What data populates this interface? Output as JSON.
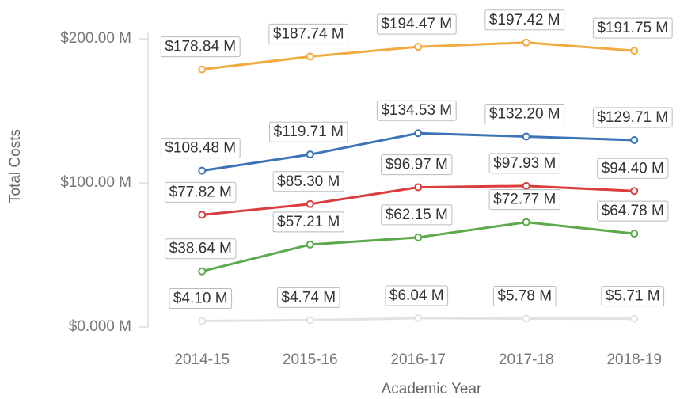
{
  "chart_data": {
    "type": "line",
    "x_label": "Academic Year",
    "y_label": "Total Costs",
    "categories": [
      "2014-15",
      "2015-16",
      "2016-17",
      "2017-18",
      "2018-19"
    ],
    "series": [
      {
        "color": "#f2aa3f",
        "values": [
          178.84,
          187.74,
          194.47,
          197.42,
          191.75
        ],
        "value_labels": [
          "$178.84 M",
          "$187.74 M",
          "$194.47 M",
          "$197.42 M",
          "$191.75 M"
        ]
      },
      {
        "color": "#3b73b9",
        "values": [
          108.48,
          119.71,
          134.53,
          132.2,
          129.71
        ],
        "value_labels": [
          "$108.48 M",
          "$119.71 M",
          "$134.53 M",
          "$132.20 M",
          "$129.71 M"
        ]
      },
      {
        "color": "#d93d3d",
        "values": [
          77.82,
          85.3,
          96.97,
          97.93,
          94.4
        ],
        "value_labels": [
          "$77.82 M",
          "$85.30 M",
          "$96.97 M",
          "$97.93 M",
          "$94.40 M"
        ]
      },
      {
        "color": "#5caa4c",
        "values": [
          38.64,
          57.21,
          62.15,
          72.77,
          64.78
        ],
        "value_labels": [
          "$38.64 M",
          "$57.21 M",
          "$62.15 M",
          "$72.77 M",
          "$64.78 M"
        ]
      },
      {
        "color": "#e2e2e2",
        "values": [
          4.1,
          4.74,
          6.04,
          5.78,
          5.71
        ],
        "value_labels": [
          "$4.10 M",
          "$4.74 M",
          "$6.04 M",
          "$5.78 M",
          "$5.71 M"
        ]
      }
    ],
    "ylim": [
      0,
      205
    ],
    "yticks": [
      {
        "value": 0,
        "label": "$0.000 M"
      },
      {
        "value": 100,
        "label": "$100.00 M"
      },
      {
        "value": 200,
        "label": "$200.00 M"
      }
    ],
    "grid": false
  }
}
